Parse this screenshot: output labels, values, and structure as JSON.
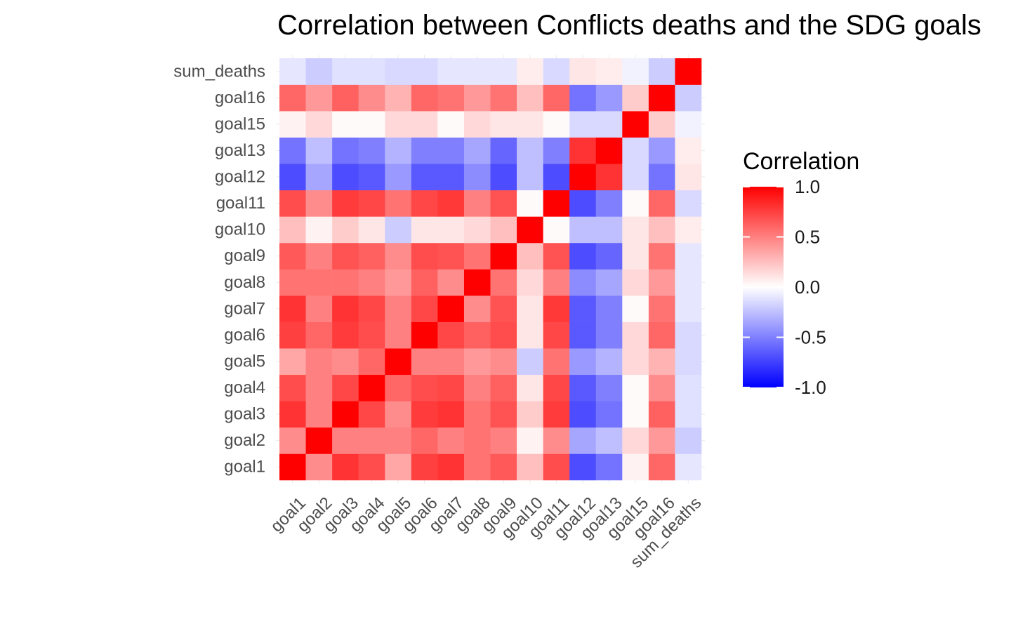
{
  "chart_data": {
    "type": "heatmap",
    "title": "Correlation between Conflicts deaths and the SDG goals",
    "xlabel": "",
    "ylabel": "",
    "variables": [
      "goal1",
      "goal2",
      "goal3",
      "goal4",
      "goal5",
      "goal6",
      "goal7",
      "goal8",
      "goal9",
      "goal10",
      "goal11",
      "goal12",
      "goal13",
      "goal15",
      "goal16",
      "sum_deaths"
    ],
    "matrix": [
      [
        1.0,
        0.45,
        0.8,
        0.7,
        0.35,
        0.75,
        0.8,
        0.55,
        0.65,
        0.25,
        0.7,
        -0.7,
        -0.55,
        0.05,
        0.6,
        -0.1
      ],
      [
        0.45,
        1.0,
        0.5,
        0.5,
        0.5,
        0.6,
        0.5,
        0.55,
        0.5,
        0.05,
        0.45,
        -0.35,
        -0.25,
        0.15,
        0.4,
        -0.2
      ],
      [
        0.8,
        0.5,
        1.0,
        0.72,
        0.45,
        0.77,
        0.8,
        0.55,
        0.68,
        0.2,
        0.77,
        -0.7,
        -0.55,
        0.02,
        0.62,
        -0.12
      ],
      [
        0.7,
        0.5,
        0.72,
        1.0,
        0.6,
        0.7,
        0.72,
        0.5,
        0.62,
        0.1,
        0.72,
        -0.65,
        -0.5,
        0.02,
        0.45,
        -0.12
      ],
      [
        0.35,
        0.5,
        0.45,
        0.6,
        1.0,
        0.5,
        0.5,
        0.4,
        0.45,
        -0.2,
        0.55,
        -0.4,
        -0.3,
        0.15,
        0.3,
        -0.15
      ],
      [
        0.75,
        0.6,
        0.77,
        0.7,
        0.5,
        1.0,
        0.72,
        0.62,
        0.7,
        0.1,
        0.72,
        -0.65,
        -0.5,
        0.15,
        0.6,
        -0.15
      ],
      [
        0.8,
        0.5,
        0.8,
        0.72,
        0.5,
        0.72,
        1.0,
        0.45,
        0.68,
        0.1,
        0.78,
        -0.65,
        -0.5,
        0.02,
        0.55,
        -0.1
      ],
      [
        0.55,
        0.55,
        0.55,
        0.5,
        0.4,
        0.62,
        0.45,
        1.0,
        0.55,
        0.15,
        0.5,
        -0.45,
        -0.35,
        0.15,
        0.4,
        -0.1
      ],
      [
        0.65,
        0.5,
        0.68,
        0.62,
        0.45,
        0.7,
        0.68,
        0.55,
        1.0,
        0.25,
        0.68,
        -0.7,
        -0.6,
        0.1,
        0.55,
        -0.1
      ],
      [
        0.25,
        0.05,
        0.2,
        0.1,
        -0.2,
        0.1,
        0.1,
        0.15,
        0.25,
        1.0,
        0.02,
        -0.25,
        -0.25,
        0.1,
        0.25,
        0.07
      ],
      [
        0.7,
        0.45,
        0.77,
        0.72,
        0.55,
        0.72,
        0.78,
        0.5,
        0.68,
        0.02,
        1.0,
        -0.7,
        -0.5,
        0.02,
        0.6,
        -0.15
      ],
      [
        -0.7,
        -0.35,
        -0.7,
        -0.65,
        -0.4,
        -0.65,
        -0.65,
        -0.45,
        -0.7,
        -0.25,
        -0.7,
        1.0,
        0.8,
        -0.15,
        -0.55,
        0.1
      ],
      [
        -0.55,
        -0.25,
        -0.55,
        -0.5,
        -0.3,
        -0.5,
        -0.5,
        -0.35,
        -0.6,
        -0.25,
        -0.5,
        0.8,
        1.0,
        -0.15,
        -0.4,
        0.07
      ],
      [
        0.05,
        0.15,
        0.02,
        0.02,
        0.15,
        0.15,
        0.02,
        0.15,
        0.1,
        0.1,
        0.02,
        -0.15,
        -0.15,
        1.0,
        0.2,
        -0.05
      ],
      [
        0.6,
        0.4,
        0.62,
        0.45,
        0.3,
        0.6,
        0.55,
        0.4,
        0.55,
        0.25,
        0.6,
        -0.55,
        -0.4,
        0.2,
        1.0,
        -0.2
      ],
      [
        -0.1,
        -0.2,
        -0.12,
        -0.12,
        -0.15,
        -0.15,
        -0.1,
        -0.1,
        -0.1,
        0.07,
        -0.15,
        0.1,
        0.07,
        -0.05,
        -0.2,
        1.0
      ]
    ],
    "legend": {
      "title": "Correlation",
      "placement": "right",
      "ticks": [
        1.0,
        0.5,
        0.0,
        -0.5,
        -1.0
      ],
      "tick_labels": [
        "1.0",
        "0.5",
        "0.0",
        "-0.5",
        "-1.0"
      ],
      "range": [
        -1,
        1
      ]
    },
    "colors": {
      "low": "#0000ff",
      "mid": "#ffffff",
      "high": "#ff0000"
    },
    "grid": false
  }
}
